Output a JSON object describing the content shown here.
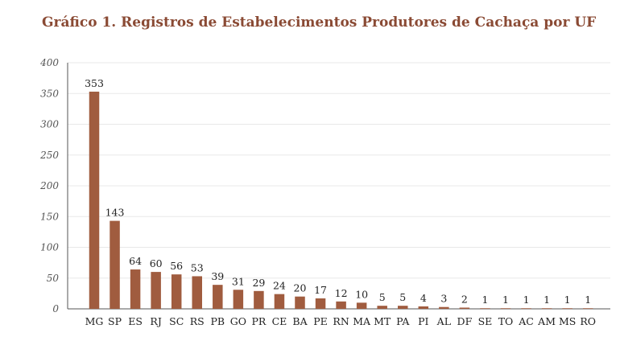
{
  "title": "Gráfico 1. Registros de Estabelecimentos Produtores de Cachaça por UF",
  "colors": {
    "bar": "#a05c3f",
    "title": "#8a4a34"
  },
  "chart_data": {
    "type": "bar",
    "categories": [
      "MG",
      "SP",
      "ES",
      "RJ",
      "SC",
      "RS",
      "PB",
      "GO",
      "PR",
      "CE",
      "BA",
      "PE",
      "RN",
      "MA",
      "MT",
      "PA",
      "PI",
      "AL",
      "DF",
      "SE",
      "TO",
      "AC",
      "AM",
      "MS",
      "RO"
    ],
    "values": [
      353,
      143,
      64,
      60,
      56,
      53,
      39,
      31,
      29,
      24,
      20,
      17,
      12,
      10,
      5,
      5,
      4,
      3,
      2,
      1,
      1,
      1,
      1,
      1,
      1
    ],
    "ylim": [
      0,
      400
    ],
    "yticks": [
      0,
      50,
      100,
      150,
      200,
      250,
      300,
      350,
      400
    ],
    "grid": true,
    "data_labels": true
  }
}
